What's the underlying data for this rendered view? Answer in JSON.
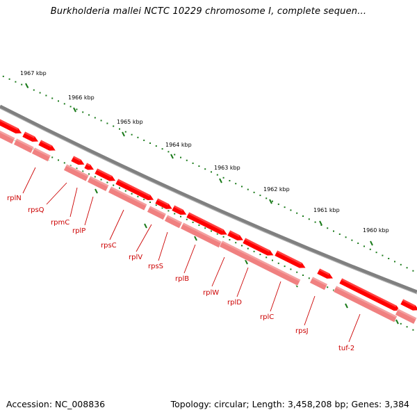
{
  "title": "Burkholderia mallei NCTC 10229 chromosome I, complete sequen...",
  "footer": {
    "accession": "Accession: NC_008836",
    "summary": "Topology: circular; Length: 3,458,208 bp; Genes: 3,384"
  },
  "colors": {
    "backbone": "#808080",
    "forward_gene": "#ff0000",
    "reverse_gene": "#f08080",
    "tick": "#1a7a1a",
    "gene_label": "#cc0000"
  },
  "scale_labels": [
    "1967 kbp",
    "1966 kbp",
    "1965 kbp",
    "1964 kbp",
    "1963 kbp",
    "1962 kbp",
    "1961 kbp",
    "1960 kbp"
  ],
  "gene_labels": [
    "rplN",
    "rpsQ",
    "rpmC",
    "rplP",
    "rpsC",
    "rplV",
    "rpsS",
    "rplB",
    "rplW",
    "rplD",
    "rplC",
    "rpsJ",
    "tuf-2"
  ]
}
